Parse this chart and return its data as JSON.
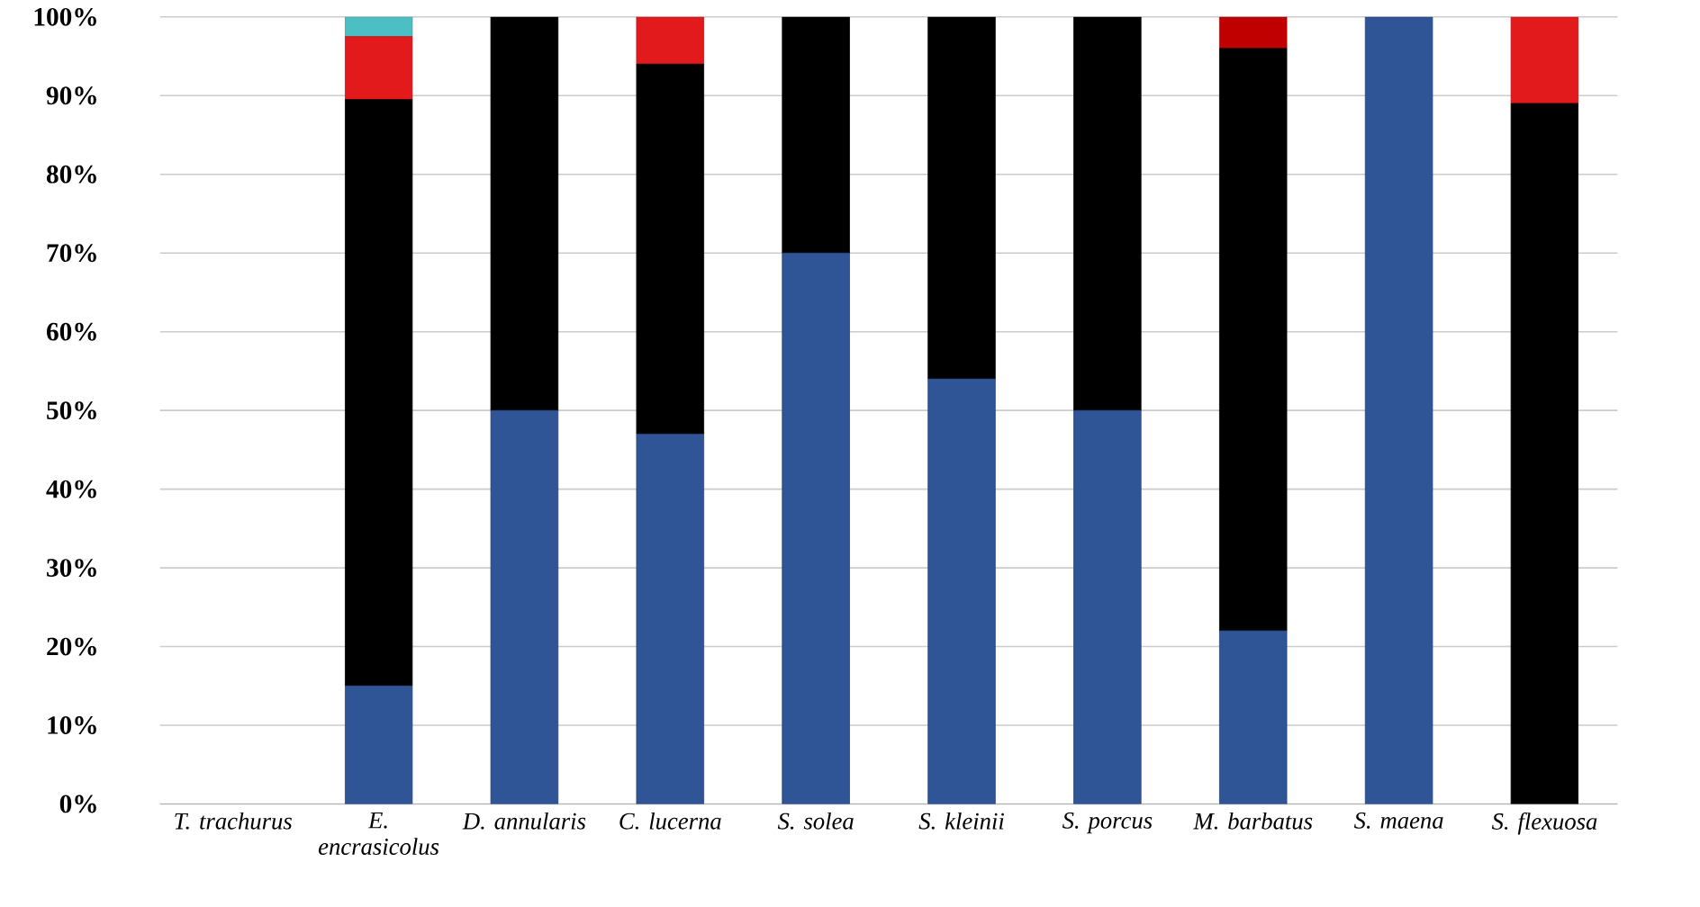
{
  "chart_data": {
    "type": "bar",
    "stacked": true,
    "categories": [
      "T. trachurus",
      "E. encrasicolus",
      "D. annularis",
      "C. lucerna",
      "S. solea",
      "S. kleinii",
      "S. porcus",
      "M. barbatus",
      "S. maena",
      "S. flexuosa"
    ],
    "series": [
      {
        "color": "#2f5597",
        "values": [
          0,
          15,
          50,
          47,
          70,
          54,
          50,
          22,
          100,
          0
        ]
      },
      {
        "color": "#000000",
        "values": [
          0,
          74.5,
          50,
          47,
          30,
          46,
          50,
          74,
          0,
          89
        ]
      },
      {
        "color": "#e31a1c",
        "values": [
          0,
          8,
          0,
          6,
          0,
          0,
          0,
          0,
          0,
          11
        ]
      },
      {
        "color": "#c00000",
        "values": [
          0,
          0,
          0,
          0,
          0,
          0,
          0,
          4,
          0,
          0
        ]
      },
      {
        "color": "#4bbfc3",
        "values": [
          0,
          2.5,
          0,
          0,
          0,
          0,
          0,
          0,
          0,
          0
        ]
      }
    ],
    "ylim": [
      0,
      100
    ],
    "yticks": [
      {
        "value": 0,
        "label": "0%"
      },
      {
        "value": 10,
        "label": "10%"
      },
      {
        "value": 20,
        "label": "20%"
      },
      {
        "value": 30,
        "label": "30%"
      },
      {
        "value": 40,
        "label": "40%"
      },
      {
        "value": 50,
        "label": "50%"
      },
      {
        "value": 60,
        "label": "60%"
      },
      {
        "value": 70,
        "label": "70%"
      },
      {
        "value": 80,
        "label": "80%"
      },
      {
        "value": 90,
        "label": "90%"
      },
      {
        "value": 100,
        "label": "100%"
      }
    ],
    "grid": "y",
    "legend": false
  }
}
